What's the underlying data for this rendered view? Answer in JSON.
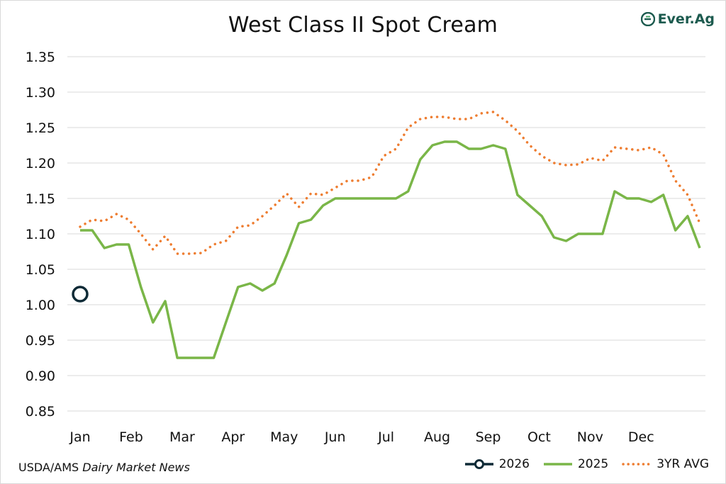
{
  "title": "West Class II Spot Cream",
  "brand": "Ever.Ag",
  "source": {
    "prefix": "USDA/AMS",
    "italic": "Dairy Market News"
  },
  "colors": {
    "2026": "#0e2a36",
    "2025": "#7ab648",
    "3yr": "#ee7d31",
    "grid": "#d9d9d9"
  },
  "chart_data": {
    "type": "line",
    "title": "West Class II Spot Cream",
    "ylim": [
      0.85,
      1.35
    ],
    "yticks": [
      "0.85",
      "0.90",
      "0.95",
      "1.00",
      "1.05",
      "1.10",
      "1.15",
      "1.20",
      "1.25",
      "1.30",
      "1.35"
    ],
    "xticks": [
      "Jan",
      "Feb",
      "Mar",
      "Apr",
      "May",
      "Jun",
      "Jul",
      "Aug",
      "Sep",
      "Oct",
      "Nov",
      "Dec"
    ],
    "grid": "horizontal",
    "legend": "bottom-right",
    "series": [
      {
        "name": "2026",
        "style": "marker",
        "x_week": [
          1
        ],
        "values": [
          1.015
        ]
      },
      {
        "name": "2025",
        "style": "solid",
        "x_week": [
          1,
          2,
          3,
          4,
          5,
          6,
          7,
          8,
          9,
          10,
          11,
          12,
          13,
          14,
          15,
          16,
          17,
          18,
          19,
          20,
          21,
          22,
          23,
          24,
          25,
          26,
          27,
          28,
          29,
          30,
          31,
          32,
          33,
          34,
          35,
          36,
          37,
          38,
          39,
          40,
          41,
          42,
          43,
          44,
          45,
          46,
          47,
          48,
          49,
          50,
          51,
          52
        ],
        "values": [
          1.105,
          1.105,
          1.08,
          1.085,
          1.085,
          1.025,
          0.975,
          1.005,
          0.925,
          0.925,
          0.925,
          0.925,
          0.975,
          1.025,
          1.03,
          1.02,
          1.03,
          1.07,
          1.115,
          1.12,
          1.14,
          1.15,
          1.15,
          1.15,
          1.15,
          1.15,
          1.15,
          1.16,
          1.205,
          1.225,
          1.23,
          1.23,
          1.22,
          1.22,
          1.225,
          1.22,
          1.155,
          1.14,
          1.125,
          1.095,
          1.09,
          1.1,
          1.1,
          1.1,
          1.16,
          1.15,
          1.15,
          1.145,
          1.155,
          1.105,
          1.125,
          1.08
        ]
      },
      {
        "name": "3YR AVG",
        "style": "dotted",
        "x_week": [
          1,
          2,
          3,
          4,
          5,
          6,
          7,
          8,
          9,
          10,
          11,
          12,
          13,
          14,
          15,
          16,
          17,
          18,
          19,
          20,
          21,
          22,
          23,
          24,
          25,
          26,
          27,
          28,
          29,
          30,
          31,
          32,
          33,
          34,
          35,
          36,
          37,
          38,
          39,
          40,
          41,
          42,
          43,
          44,
          45,
          46,
          47,
          48,
          49,
          50,
          51,
          52
        ],
        "values": [
          1.11,
          1.12,
          1.118,
          1.128,
          1.12,
          1.1,
          1.078,
          1.097,
          1.072,
          1.072,
          1.073,
          1.085,
          1.09,
          1.11,
          1.112,
          1.125,
          1.14,
          1.157,
          1.138,
          1.157,
          1.155,
          1.165,
          1.175,
          1.175,
          1.18,
          1.21,
          1.22,
          1.25,
          1.262,
          1.265,
          1.265,
          1.262,
          1.262,
          1.27,
          1.272,
          1.26,
          1.245,
          1.225,
          1.21,
          1.2,
          1.197,
          1.198,
          1.207,
          1.203,
          1.222,
          1.22,
          1.218,
          1.222,
          1.212,
          1.175,
          1.155,
          1.115
        ]
      }
    ]
  }
}
